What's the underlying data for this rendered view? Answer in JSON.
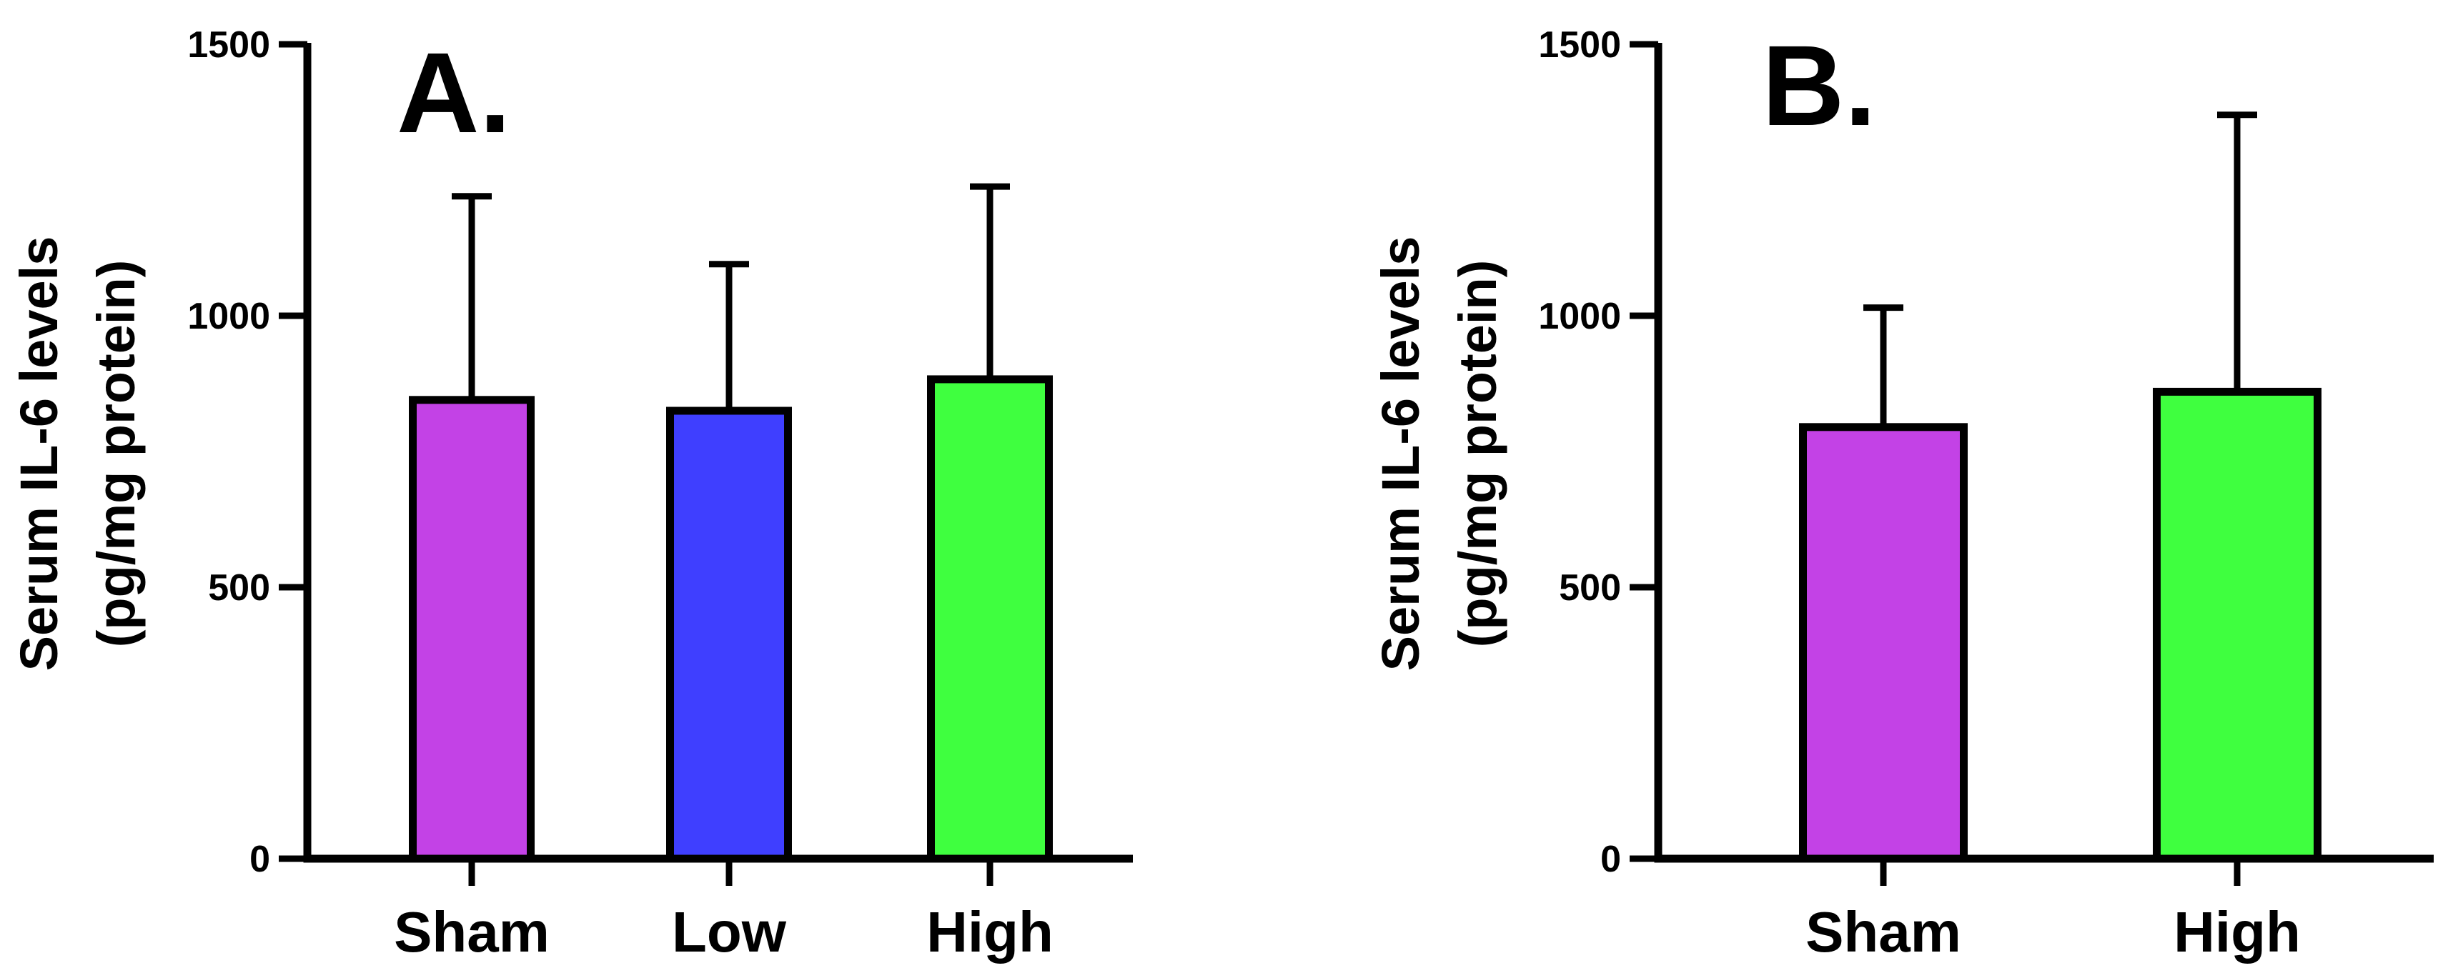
{
  "chart_data": [
    {
      "type": "bar",
      "panel_label": "A.",
      "ylabel_line1": "Serum IL-6 levels",
      "ylabel_line2": "(pg/mg protein)",
      "categories": [
        "Sham",
        "Low",
        "High"
      ],
      "values": [
        845,
        825,
        883
      ],
      "error_upper": [
        1220,
        1095,
        1238
      ],
      "colors": [
        "#c342e6",
        "#3f3fff",
        "#3fff3f"
      ],
      "ylim": [
        0,
        1500
      ],
      "yticks": [
        0,
        500,
        1000,
        1500
      ],
      "grid": false
    },
    {
      "type": "bar",
      "panel_label": "B.",
      "ylabel_line1": "Serum IL-6 levels",
      "ylabel_line2": "(pg/mg protein)",
      "categories": [
        "Sham",
        "High"
      ],
      "values": [
        795,
        860
      ],
      "error_upper": [
        1015,
        1370
      ],
      "colors": [
        "#c342e6",
        "#3fff3f"
      ],
      "ylim": [
        0,
        1500
      ],
      "yticks": [
        0,
        500,
        1000,
        1500
      ],
      "grid": false
    }
  ]
}
